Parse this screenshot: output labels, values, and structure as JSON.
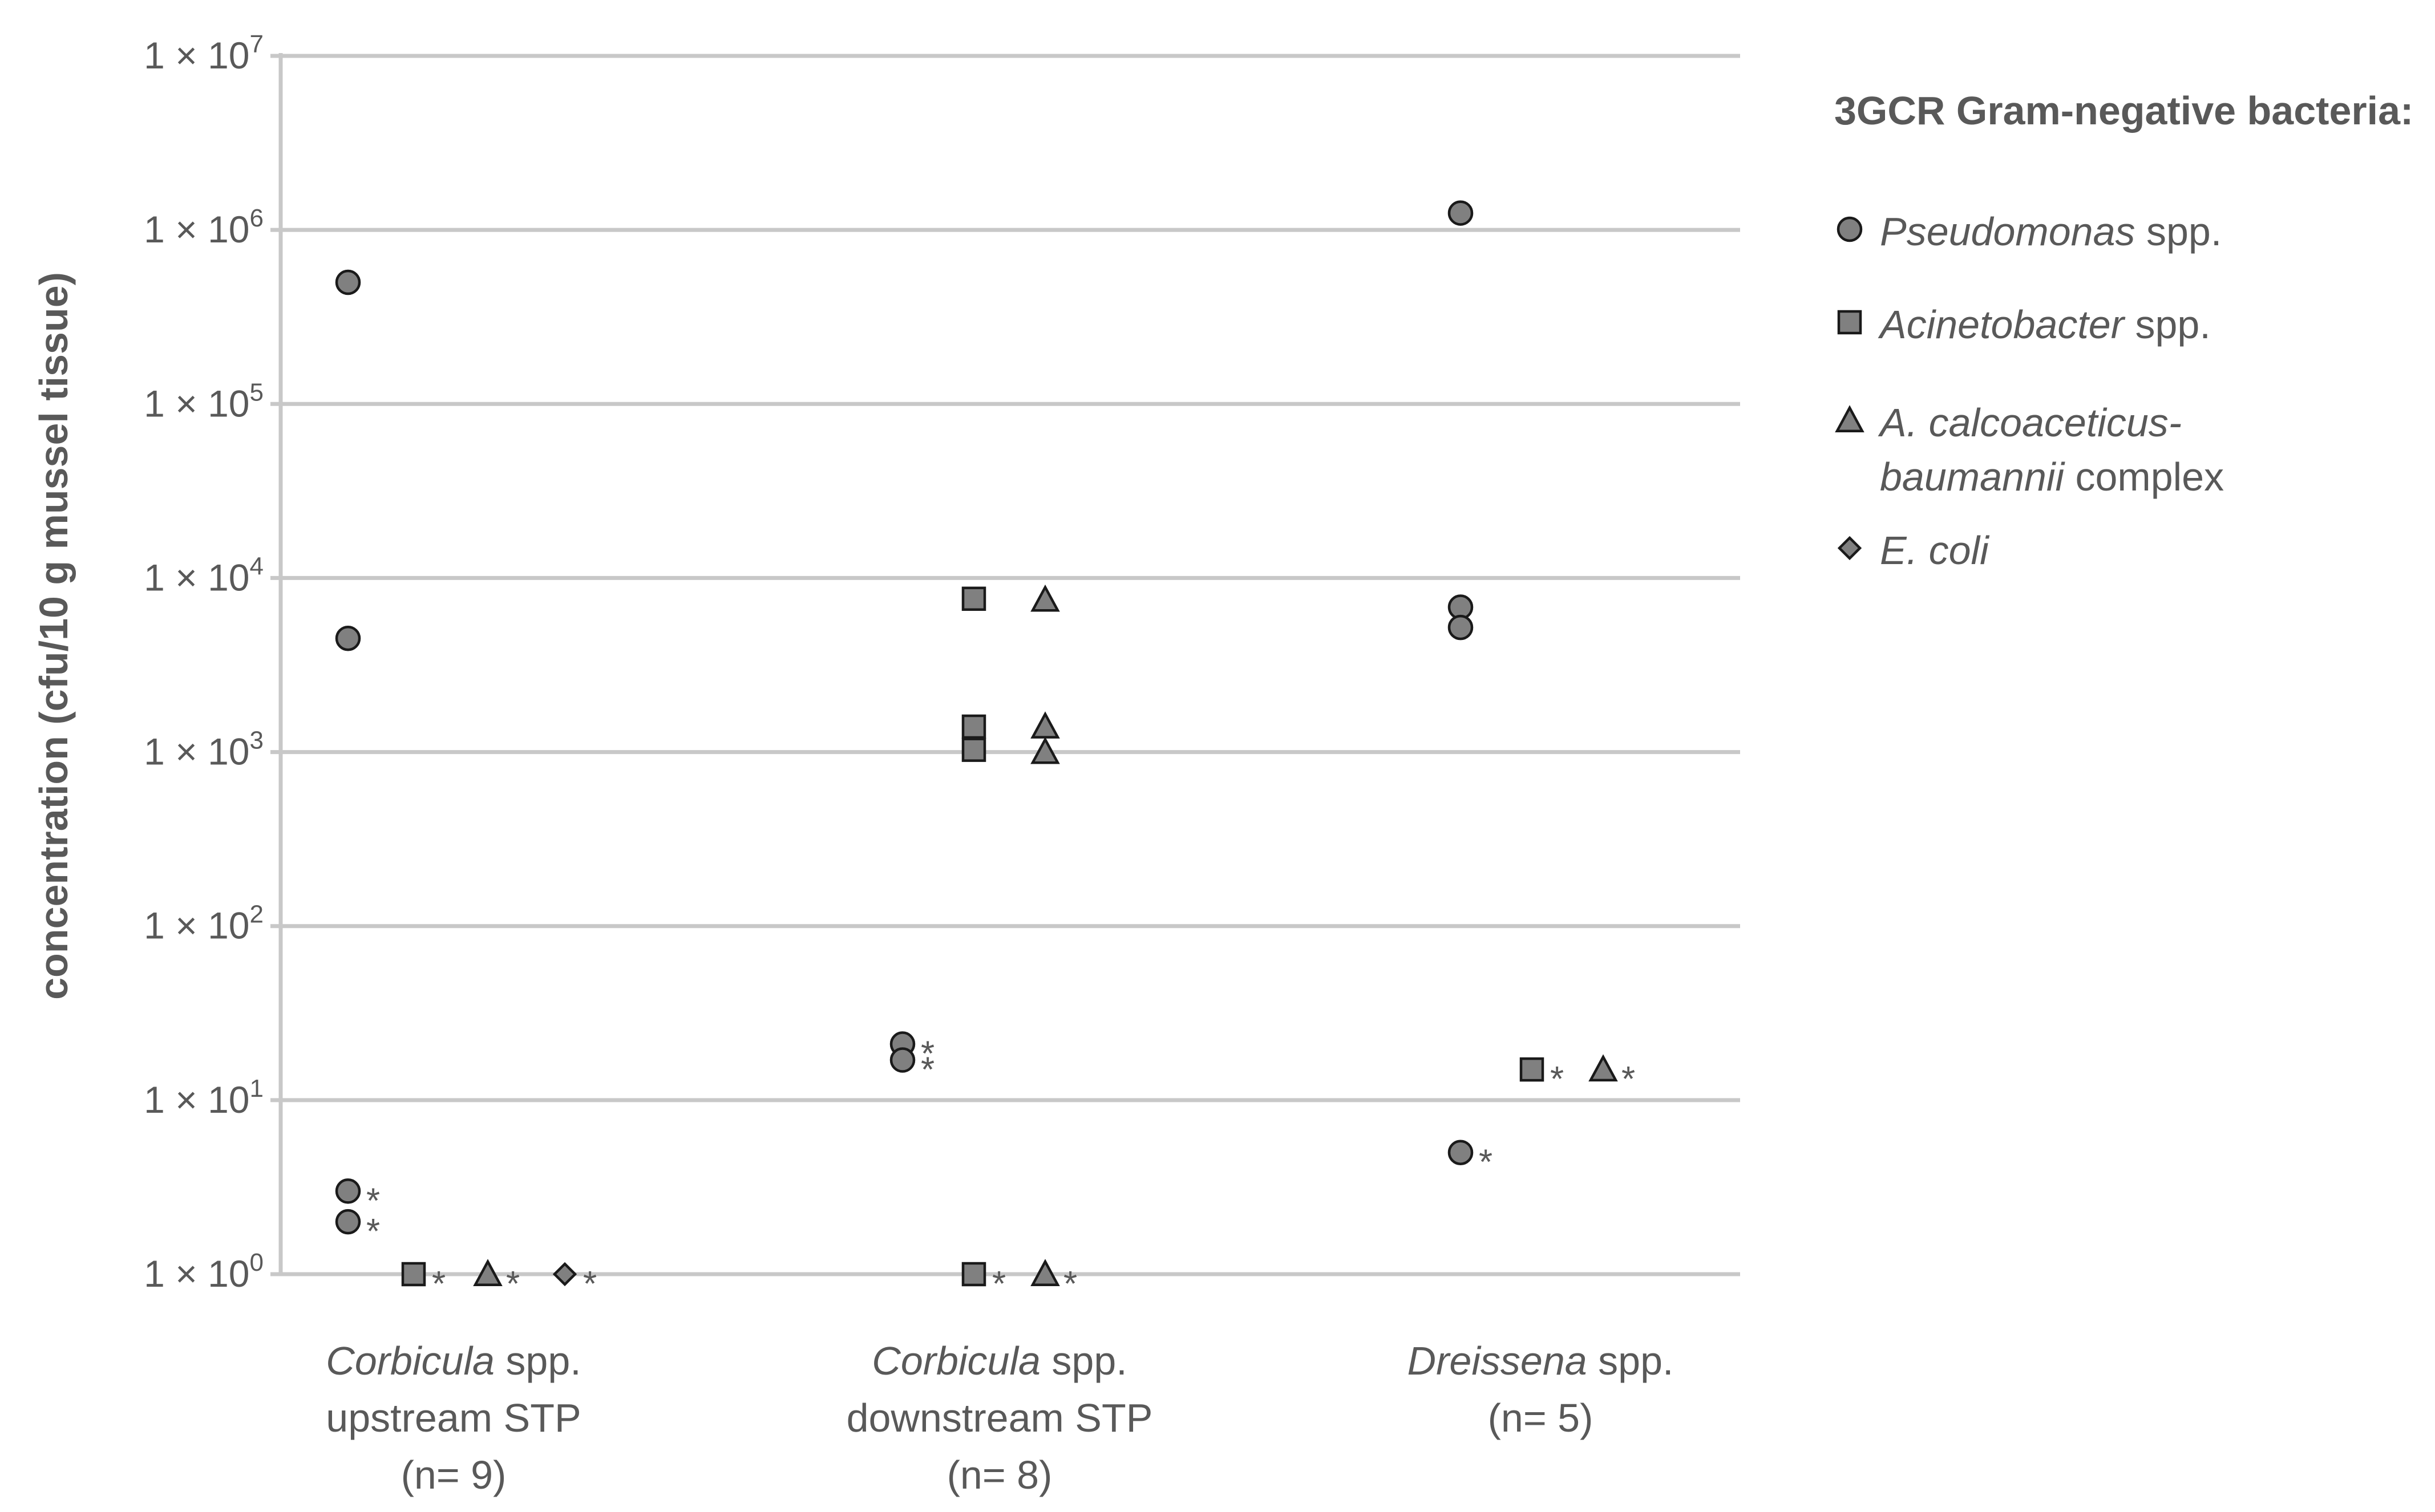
{
  "chart_data": {
    "type": "scatter",
    "ylabel": "concentration (cfu/10 g mussel tissue)",
    "yscale": "log10",
    "ylim": [
      1,
      10000000
    ],
    "yticks": [
      {
        "value": 1,
        "base": "1 × 10",
        "exp": "0"
      },
      {
        "value": 10,
        "base": "1 × 10",
        "exp": "1"
      },
      {
        "value": 100,
        "base": "1 × 10",
        "exp": "2"
      },
      {
        "value": 1000,
        "base": "1 × 10",
        "exp": "3"
      },
      {
        "value": 10000,
        "base": "1 × 10",
        "exp": "4"
      },
      {
        "value": 100000,
        "base": "1 × 10",
        "exp": "5"
      },
      {
        "value": 1000000,
        "base": "1 × 10",
        "exp": "6"
      },
      {
        "value": 10000000,
        "base": "1 × 10",
        "exp": "7"
      }
    ],
    "grid": true,
    "categories": [
      {
        "name_italic": "Corbicula",
        "name_rest": " spp.",
        "line2": "upstream STP",
        "line3": "(n= 9)"
      },
      {
        "name_italic": "Corbicula",
        "name_rest": " spp.",
        "line2": "downstream STP",
        "line3": "(n= 8)"
      },
      {
        "name_italic": "Dreissena",
        "name_rest": " spp.",
        "line2": "(n= 5)",
        "line3": ""
      }
    ],
    "marker_note": "*",
    "series": [
      {
        "name": "Pseudomonas spp.",
        "marker": "circle",
        "points": [
          {
            "category": 0,
            "value": 500000,
            "flag": false
          },
          {
            "category": 0,
            "value": 4500,
            "flag": false
          },
          {
            "category": 0,
            "value": 3,
            "flag": true
          },
          {
            "category": 0,
            "value": 2,
            "flag": true
          },
          {
            "category": 1,
            "value": 21,
            "flag": true
          },
          {
            "category": 1,
            "value": 17,
            "flag": true
          },
          {
            "category": 2,
            "value": 1250000,
            "flag": false
          },
          {
            "category": 2,
            "value": 6800,
            "flag": false
          },
          {
            "category": 2,
            "value": 5200,
            "flag": false
          },
          {
            "category": 2,
            "value": 5,
            "flag": true
          }
        ]
      },
      {
        "name": "Acinetobacter spp.",
        "marker": "square",
        "points": [
          {
            "category": 0,
            "value": 1,
            "flag": true
          },
          {
            "category": 1,
            "value": 7600,
            "flag": false
          },
          {
            "category": 1,
            "value": 1400,
            "flag": false
          },
          {
            "category": 1,
            "value": 1030,
            "flag": false
          },
          {
            "category": 1,
            "value": 1,
            "flag": true
          },
          {
            "category": 2,
            "value": 15,
            "flag": true
          }
        ]
      },
      {
        "name": "A. calcoaceticus-baumannii complex",
        "marker": "triangle",
        "points": [
          {
            "category": 0,
            "value": 1,
            "flag": true
          },
          {
            "category": 1,
            "value": 7500,
            "flag": false
          },
          {
            "category": 1,
            "value": 1400,
            "flag": false
          },
          {
            "category": 1,
            "value": 1000,
            "flag": false
          },
          {
            "category": 1,
            "value": 1,
            "flag": true
          },
          {
            "category": 2,
            "value": 15,
            "flag": true
          }
        ]
      },
      {
        "name": "E. coli",
        "marker": "diamond",
        "points": [
          {
            "category": 0,
            "value": 1,
            "flag": true
          }
        ]
      }
    ],
    "legend": {
      "position": "top-right",
      "title": "3GCR Gram-negative bacteria:",
      "items": [
        {
          "marker": "circle",
          "italic": "Pseudomonas",
          "rest": " spp.",
          "line2_italic": "",
          "line2_rest": ""
        },
        {
          "marker": "square",
          "italic": "Acinetobacter",
          "rest": " spp.",
          "line2_italic": "",
          "line2_rest": ""
        },
        {
          "marker": "triangle",
          "italic": "A. calcoaceticus-",
          "rest": "",
          "line2_italic": "baumannii",
          "line2_rest": " complex"
        },
        {
          "marker": "diamond",
          "italic": "E. coli",
          "rest": "",
          "line2_italic": "",
          "line2_rest": ""
        }
      ]
    },
    "colors": {
      "marker_fill": "#808080",
      "marker_stroke": "#1a1a1a",
      "grid": "#c8c8c8",
      "text": "#595959"
    }
  }
}
